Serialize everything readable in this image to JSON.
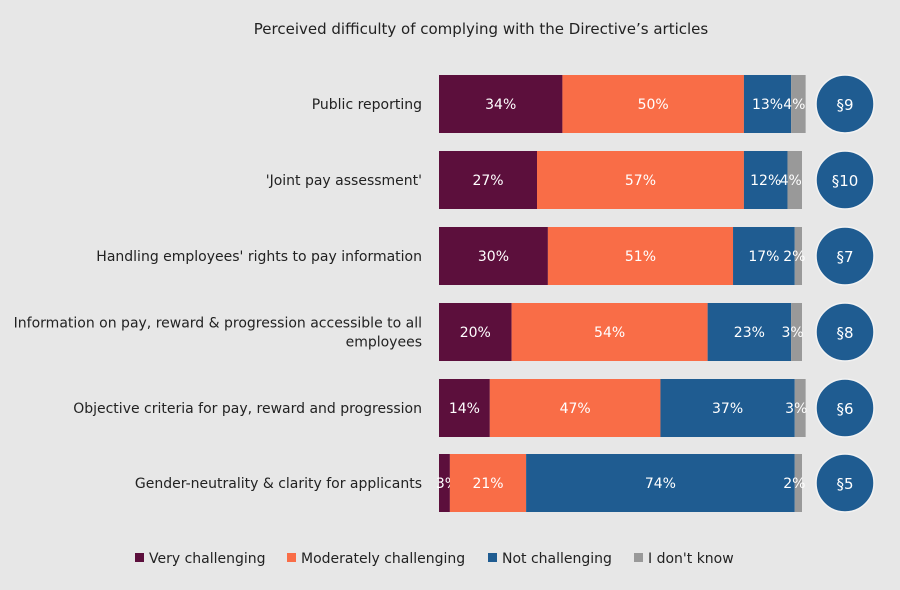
{
  "chart_data": {
    "type": "bar",
    "orientation": "horizontal",
    "stacked": true,
    "title": "Perceived difficulty of complying with the Directive’s articles",
    "categories": [
      "Public reporting",
      "'Joint pay assessment'",
      "Handling employees' rights to pay information",
      "Information on pay, reward & progression accessible to all employees",
      "Objective criteria for pay, reward and progression",
      "Gender-neutrality & clarity for applicants"
    ],
    "article_badges": [
      "§9",
      "§10",
      "§7",
      "§8",
      "§6",
      "§5"
    ],
    "series": [
      {
        "name": "Very challenging",
        "color": "#5c0f3c",
        "values": [
          34,
          27,
          30,
          20,
          14,
          3
        ]
      },
      {
        "name": "Moderately challenging",
        "color": "#f96d47",
        "values": [
          50,
          57,
          51,
          54,
          47,
          21
        ]
      },
      {
        "name": "Not challenging",
        "color": "#1f5c91",
        "values": [
          13,
          12,
          17,
          23,
          37,
          74
        ]
      },
      {
        "name": "I don't know",
        "color": "#999999",
        "values": [
          4,
          4,
          2,
          3,
          3,
          2
        ]
      }
    ],
    "value_suffix": "%",
    "xlim": [
      0,
      100
    ],
    "grid": false,
    "legend_position": "bottom"
  }
}
